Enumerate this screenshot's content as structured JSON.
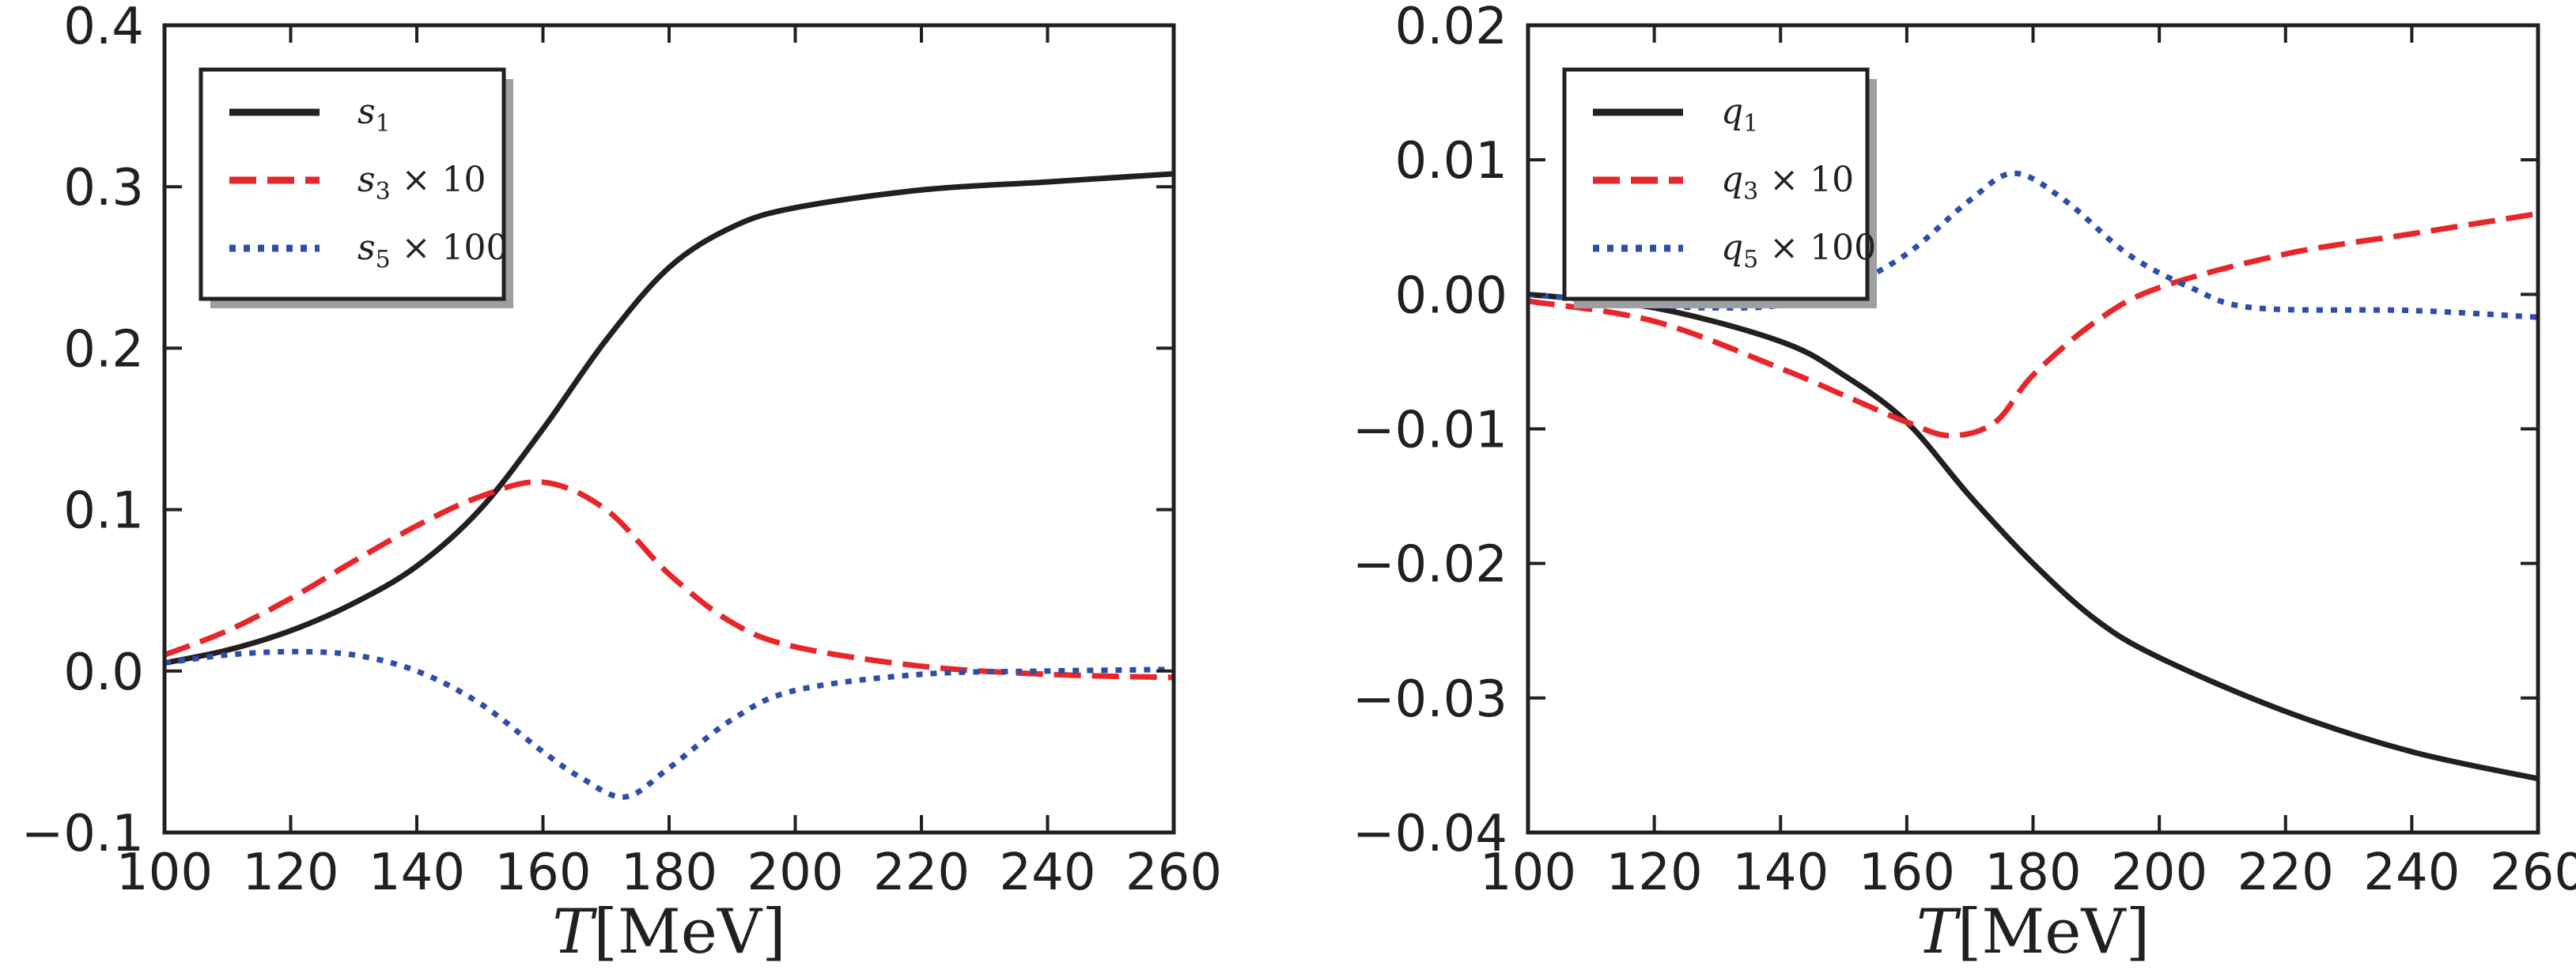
{
  "chart_data": [
    {
      "type": "line",
      "xlabel_var": "T",
      "xlabel_unit": "[MeV]",
      "xlim": [
        100,
        260
      ],
      "ylim": [
        -0.1,
        0.4
      ],
      "xticks": [
        100,
        120,
        140,
        160,
        180,
        200,
        220,
        240,
        260
      ],
      "yticks": [
        -0.1,
        0.0,
        0.1,
        0.2,
        0.3,
        0.4
      ],
      "ytick_labels": [
        "−0.1",
        "0.0",
        "0.1",
        "0.2",
        "0.3",
        "0.4"
      ],
      "legend_position": "top-left",
      "series": [
        {
          "name": "s1",
          "var": "s",
          "sub": "1",
          "suffix": "",
          "color": "#231f20",
          "style": "solid",
          "x": [
            100,
            110,
            120,
            130,
            140,
            150,
            160,
            170,
            180,
            190,
            200,
            220,
            240,
            260
          ],
          "y": [
            0.005,
            0.013,
            0.025,
            0.042,
            0.065,
            0.1,
            0.15,
            0.205,
            0.25,
            0.275,
            0.287,
            0.298,
            0.303,
            0.308
          ]
        },
        {
          "name": "s3 x 10",
          "var": "s",
          "sub": "3",
          "suffix": " × 10",
          "color": "#e8262a",
          "style": "dashed",
          "x": [
            100,
            110,
            120,
            130,
            140,
            150,
            160,
            170,
            180,
            190,
            200,
            220,
            240,
            260
          ],
          "y": [
            0.01,
            0.025,
            0.045,
            0.068,
            0.09,
            0.108,
            0.117,
            0.1,
            0.06,
            0.03,
            0.015,
            0.003,
            -0.002,
            -0.004
          ]
        },
        {
          "name": "s5 x 100",
          "var": "s",
          "sub": "5",
          "suffix": " × 100",
          "color": "#2b4fa8",
          "style": "dotted",
          "x": [
            100,
            110,
            120,
            130,
            140,
            150,
            160,
            166,
            173,
            180,
            190,
            200,
            220,
            240,
            260
          ],
          "y": [
            0.005,
            0.01,
            0.012,
            0.01,
            0.0,
            -0.02,
            -0.05,
            -0.066,
            -0.078,
            -0.06,
            -0.03,
            -0.012,
            -0.002,
            0.0,
            0.001
          ]
        }
      ]
    },
    {
      "type": "line",
      "xlabel_var": "T",
      "xlabel_unit": "[MeV]",
      "xlim": [
        100,
        260
      ],
      "ylim": [
        -0.04,
        0.02
      ],
      "xticks": [
        100,
        120,
        140,
        160,
        180,
        200,
        220,
        240,
        260
      ],
      "yticks": [
        -0.04,
        -0.03,
        -0.02,
        -0.01,
        0.0,
        0.01,
        0.02
      ],
      "ytick_labels": [
        "−0.04",
        "−0.03",
        "−0.02",
        "−0.01",
        "0.00",
        "0.01",
        "0.02"
      ],
      "legend_position": "top-left",
      "series": [
        {
          "name": "q1",
          "var": "q",
          "sub": "1",
          "suffix": "",
          "color": "#231f20",
          "style": "solid",
          "x": [
            100,
            120,
            140,
            150,
            160,
            170,
            180,
            190,
            200,
            220,
            240,
            260
          ],
          "y": [
            0.0,
            -0.001,
            -0.0035,
            -0.006,
            -0.0095,
            -0.015,
            -0.02,
            -0.0242,
            -0.027,
            -0.031,
            -0.034,
            -0.036
          ]
        },
        {
          "name": "q3 x 10",
          "var": "q",
          "sub": "3",
          "suffix": " × 10",
          "color": "#e8262a",
          "style": "dashed",
          "x": [
            100,
            120,
            140,
            150,
            160,
            167,
            174,
            180,
            190,
            200,
            220,
            240,
            260
          ],
          "y": [
            -0.0005,
            -0.002,
            -0.0055,
            -0.0075,
            -0.0095,
            -0.0105,
            -0.0095,
            -0.006,
            -0.002,
            0.0005,
            0.003,
            0.0045,
            0.006
          ]
        },
        {
          "name": "q5 x 100",
          "var": "q",
          "sub": "5",
          "suffix": " × 100",
          "color": "#2b4fa8",
          "style": "dotted",
          "x": [
            100,
            120,
            130,
            140,
            150,
            160,
            170,
            177,
            185,
            195,
            205,
            215,
            240,
            260
          ],
          "y": [
            0.0,
            -0.0008,
            -0.001,
            -0.0008,
            0.0005,
            0.003,
            0.007,
            0.009,
            0.007,
            0.003,
            0.0005,
            -0.001,
            -0.0012,
            -0.0017
          ]
        }
      ]
    }
  ]
}
